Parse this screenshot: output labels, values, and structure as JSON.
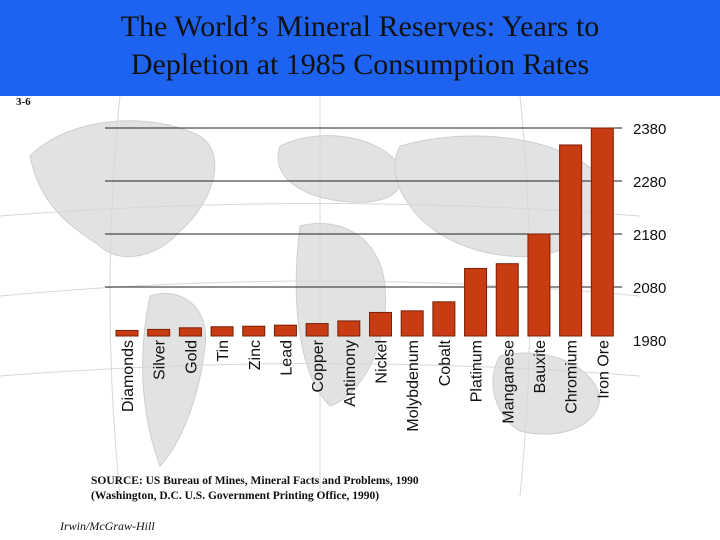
{
  "slide": {
    "title_line1": "The World’s Mineral Reserves:  Years to",
    "title_line2": "Depletion at 1985 Consumption Rates",
    "slide_number": "3-6",
    "source_line1": "SOURCE: US Bureau of Mines, Mineral Facts and Problems, 1990",
    "source_line2": "(Washington, D.C. U.S. Government Printing Office, 1990)",
    "footer": "Irwin/McGraw-Hill",
    "colors": {
      "band": "#1e63f0",
      "bar": "#c83c14",
      "bar_edge": "#7a1f05"
    }
  },
  "chart_data": {
    "type": "bar",
    "title": "The World’s Mineral Reserves:  Years to Depletion at 1985 Consumption Rates",
    "categories": [
      "Diamonds",
      "Silver",
      "Gold",
      "Tin",
      "Zinc",
      "Lead",
      "Copper",
      "Antimony",
      "Nickel",
      "Molybdenum",
      "Cobalt",
      "Platinum",
      "Manganese",
      "Bauxite",
      "Chromium",
      "Iron Ore"
    ],
    "values": [
      1998,
      2000,
      2003,
      2005,
      2006,
      2008,
      2011,
      2016,
      2032,
      2035,
      2052,
      2115,
      2124,
      2180,
      2348,
      2380
    ],
    "ylim": [
      1980,
      2380
    ],
    "yticks": [
      1980,
      2080,
      2180,
      2280,
      2380
    ],
    "grid": true,
    "legend": "none",
    "xlabel": "",
    "ylabel": ""
  }
}
